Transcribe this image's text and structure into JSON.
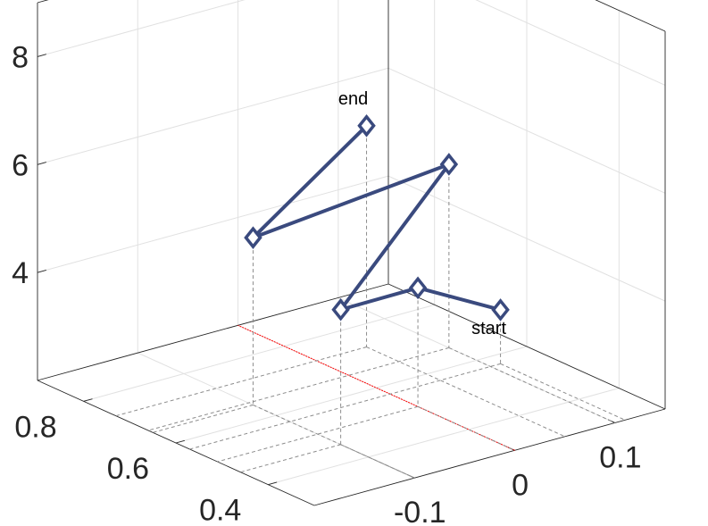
{
  "chart_data": {
    "type": "line3d",
    "title": "",
    "xlabel": "",
    "ylabel": "",
    "zlabel": "",
    "grid": true,
    "axes": {
      "x": {
        "lim": [
          -0.2,
          0.15
        ],
        "ticks": [
          -0.1,
          0,
          0.1
        ],
        "tick_labels": [
          "-0.1",
          "0",
          "0.1"
        ]
      },
      "y": {
        "lim": [
          0.3,
          0.9
        ],
        "ticks": [
          0.4,
          0.6,
          0.8
        ],
        "tick_labels": [
          "0.4",
          "0.6",
          "0.8"
        ]
      },
      "z": {
        "lim": [
          2,
          9
        ],
        "ticks": [
          4,
          6,
          8
        ],
        "tick_labels": [
          "4",
          "6",
          "8"
        ]
      }
    },
    "series": [
      {
        "marker": "diamond",
        "color": "#3a4a7e",
        "points": [
          {
            "x": 0.11,
            "y": 0.57,
            "z": 3.0
          },
          {
            "x": 0.0,
            "y": 0.51,
            "z": 4.2
          },
          {
            "x": -0.1,
            "y": 0.46,
            "z": 4.5
          },
          {
            "x": 0.1,
            "y": 0.66,
            "z": 5.4
          },
          {
            "x": -0.1,
            "y": 0.65,
            "z": 5.1
          },
          {
            "x": 0.05,
            "y": 0.73,
            "z": 6.1
          }
        ]
      }
    ],
    "reference_line": {
      "color": "#ff0000",
      "points": [
        {
          "x": 0.0,
          "y": 0.3,
          "z": 2
        },
        {
          "x": 0.0,
          "y": 0.9,
          "z": 2
        }
      ]
    },
    "annotations": [
      {
        "text": "start",
        "point_index": 0
      },
      {
        "text": "end",
        "point_index": 5
      }
    ]
  },
  "colors": {
    "line": "#3a4a7e",
    "marker_edge": "#3a4a7e",
    "projection": "#8c8c8c",
    "reference": "#ff0000",
    "grid": "#e1e1e1",
    "box": "#262626"
  }
}
